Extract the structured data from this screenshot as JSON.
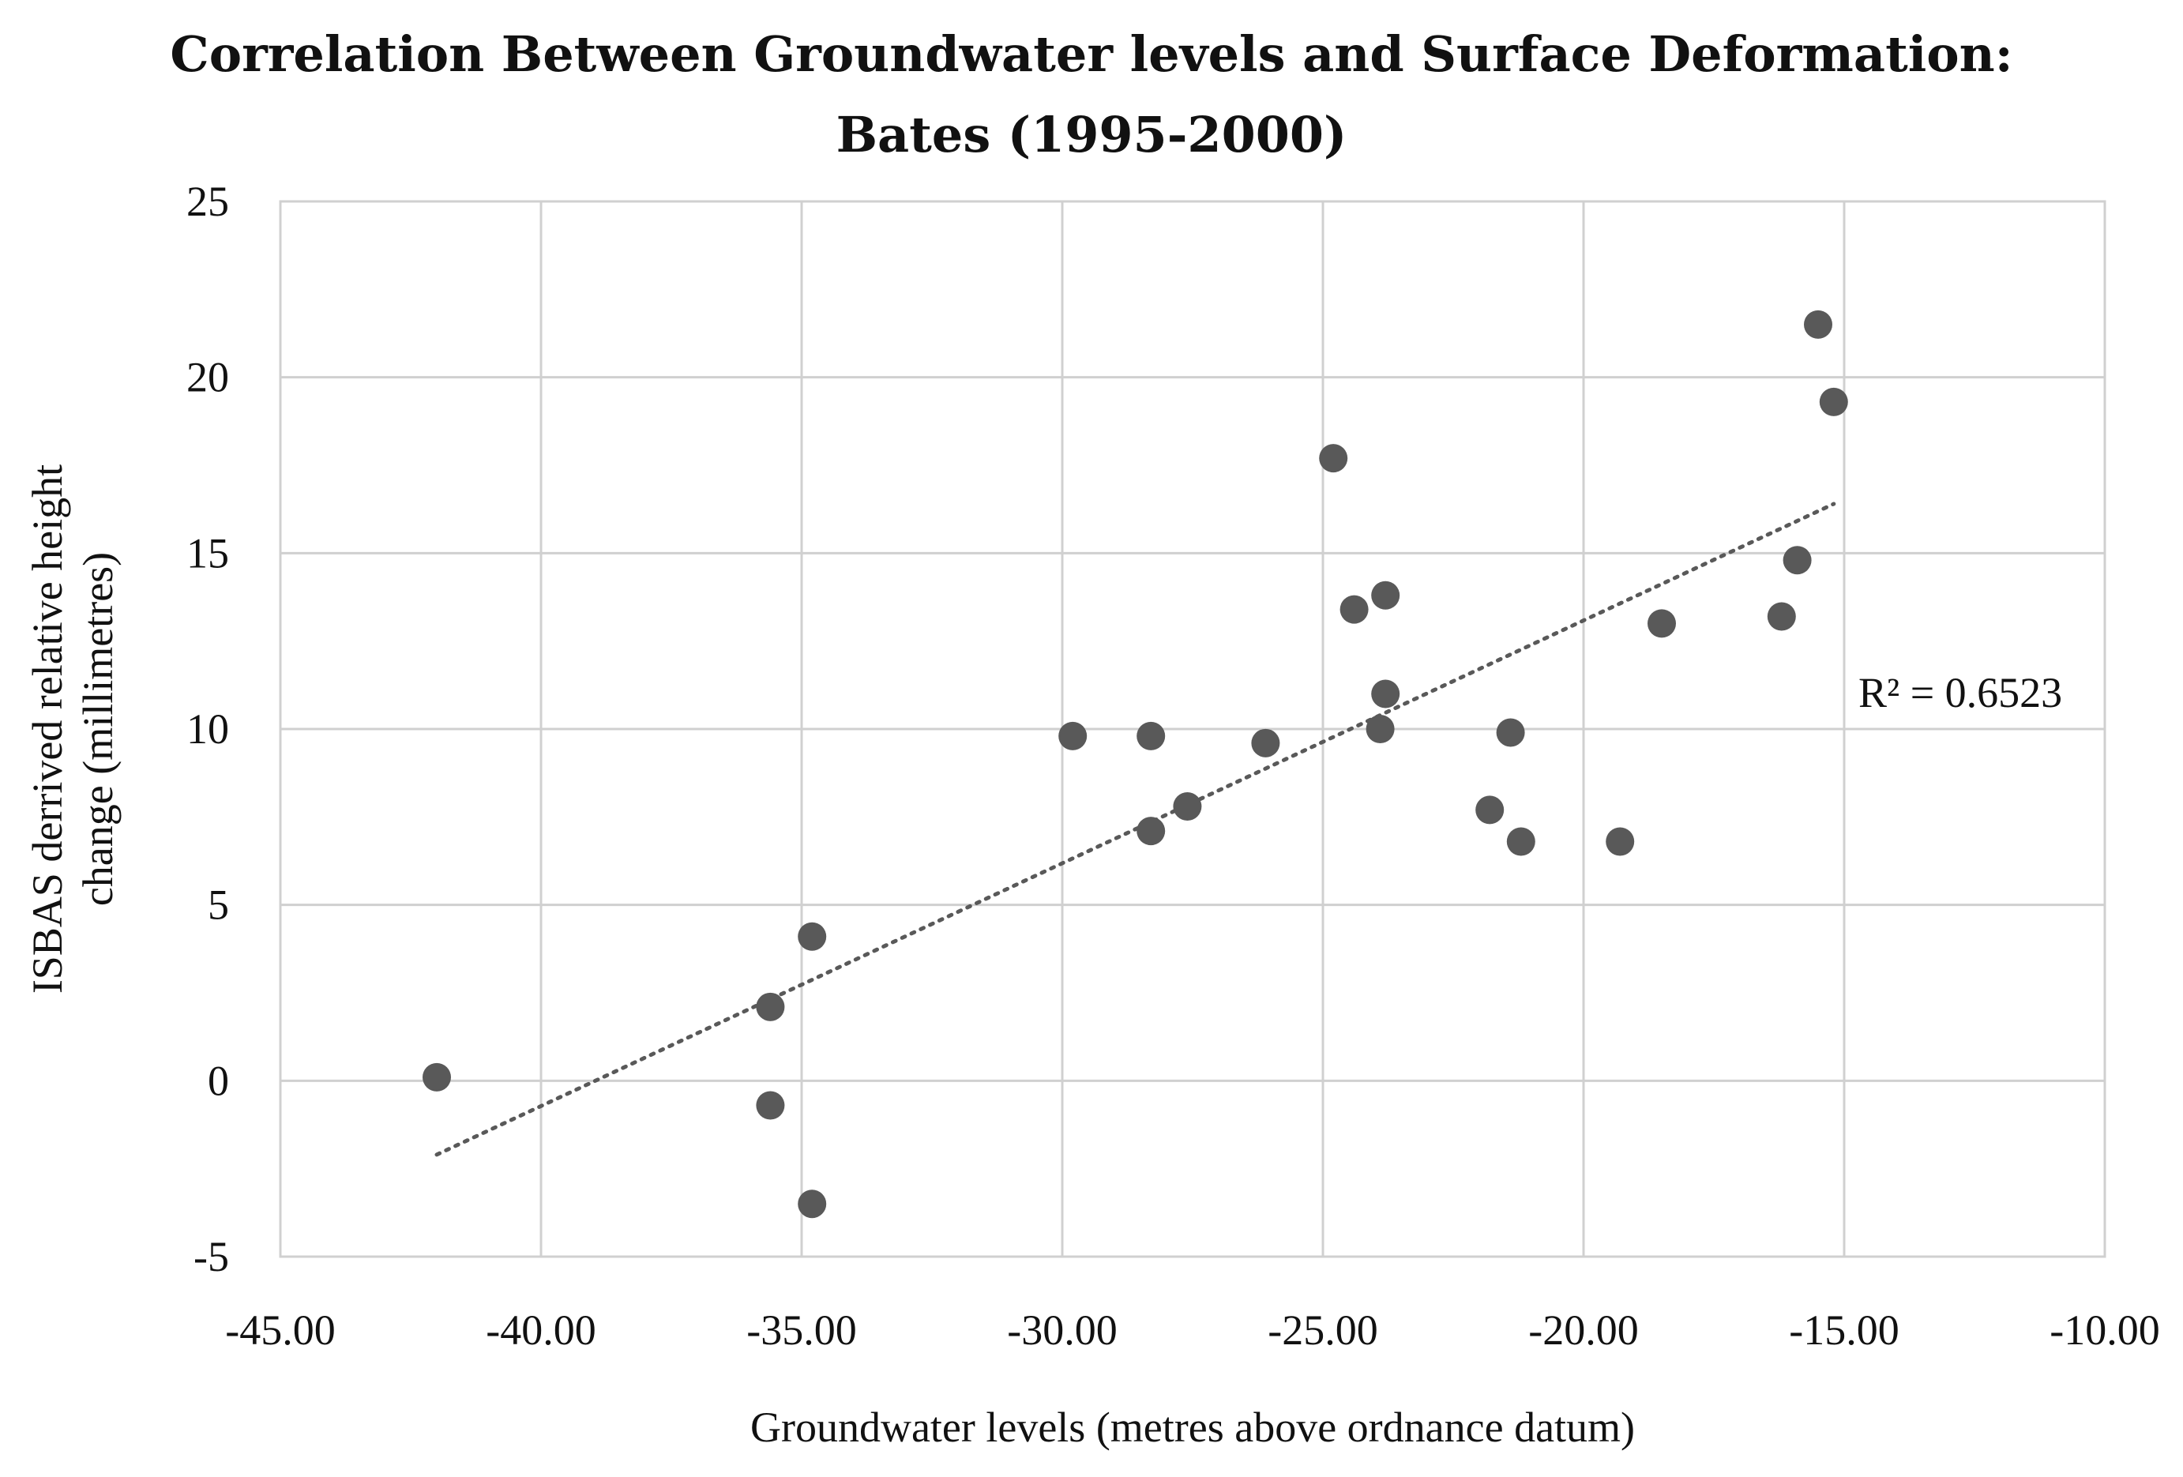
{
  "chart_data": {
    "type": "scatter",
    "title_line1": "Correlation Between Groundwater levels and Surface Deformation:",
    "title_line2": "Bates (1995-2000)",
    "xlabel": "Groundwater levels (metres above ordnance datum)",
    "ylabel_line1": "ISBAS derrived relative height",
    "ylabel_line2": "change (millimetres)",
    "xlim": [
      -45,
      -10
    ],
    "ylim": [
      -5,
      25
    ],
    "x_ticks": [
      -45,
      -40,
      -35,
      -30,
      -25,
      -20,
      -15,
      -10
    ],
    "x_tick_labels": [
      "-45.00",
      "-40.00",
      "-35.00",
      "-30.00",
      "-25.00",
      "-20.00",
      "-15.00",
      "-10.00"
    ],
    "y_ticks": [
      -5,
      0,
      5,
      10,
      15,
      20,
      25
    ],
    "y_tick_labels": [
      "-5",
      "0",
      "5",
      "10",
      "15",
      "20",
      "25"
    ],
    "grid": true,
    "series": [
      {
        "name": "Bates",
        "color": "#595959",
        "points": [
          {
            "x": -42.0,
            "y": 0.1
          },
          {
            "x": -35.6,
            "y": 2.1
          },
          {
            "x": -35.6,
            "y": -0.7
          },
          {
            "x": -34.8,
            "y": 4.1
          },
          {
            "x": -34.8,
            "y": -3.5
          },
          {
            "x": -29.8,
            "y": 9.8
          },
          {
            "x": -28.3,
            "y": 9.8
          },
          {
            "x": -28.3,
            "y": 7.1
          },
          {
            "x": -27.6,
            "y": 7.8
          },
          {
            "x": -26.1,
            "y": 9.6
          },
          {
            "x": -24.8,
            "y": 17.7
          },
          {
            "x": -24.4,
            "y": 13.4
          },
          {
            "x": -23.8,
            "y": 13.8
          },
          {
            "x": -23.8,
            "y": 11.0
          },
          {
            "x": -23.9,
            "y": 10.0
          },
          {
            "x": -21.8,
            "y": 7.7
          },
          {
            "x": -21.4,
            "y": 9.9
          },
          {
            "x": -21.2,
            "y": 6.8
          },
          {
            "x": -19.3,
            "y": 6.8
          },
          {
            "x": -18.5,
            "y": 13.0
          },
          {
            "x": -16.2,
            "y": 13.2
          },
          {
            "x": -15.9,
            "y": 14.8
          },
          {
            "x": -15.5,
            "y": 21.5
          },
          {
            "x": -15.2,
            "y": 19.3
          }
        ]
      }
    ],
    "trendline": {
      "type": "linear",
      "x_start": -42.0,
      "y_start": -2.1,
      "x_end": -15.2,
      "y_end": 16.4,
      "color": "#595959",
      "r2_label": "R² = 0.6523"
    }
  }
}
